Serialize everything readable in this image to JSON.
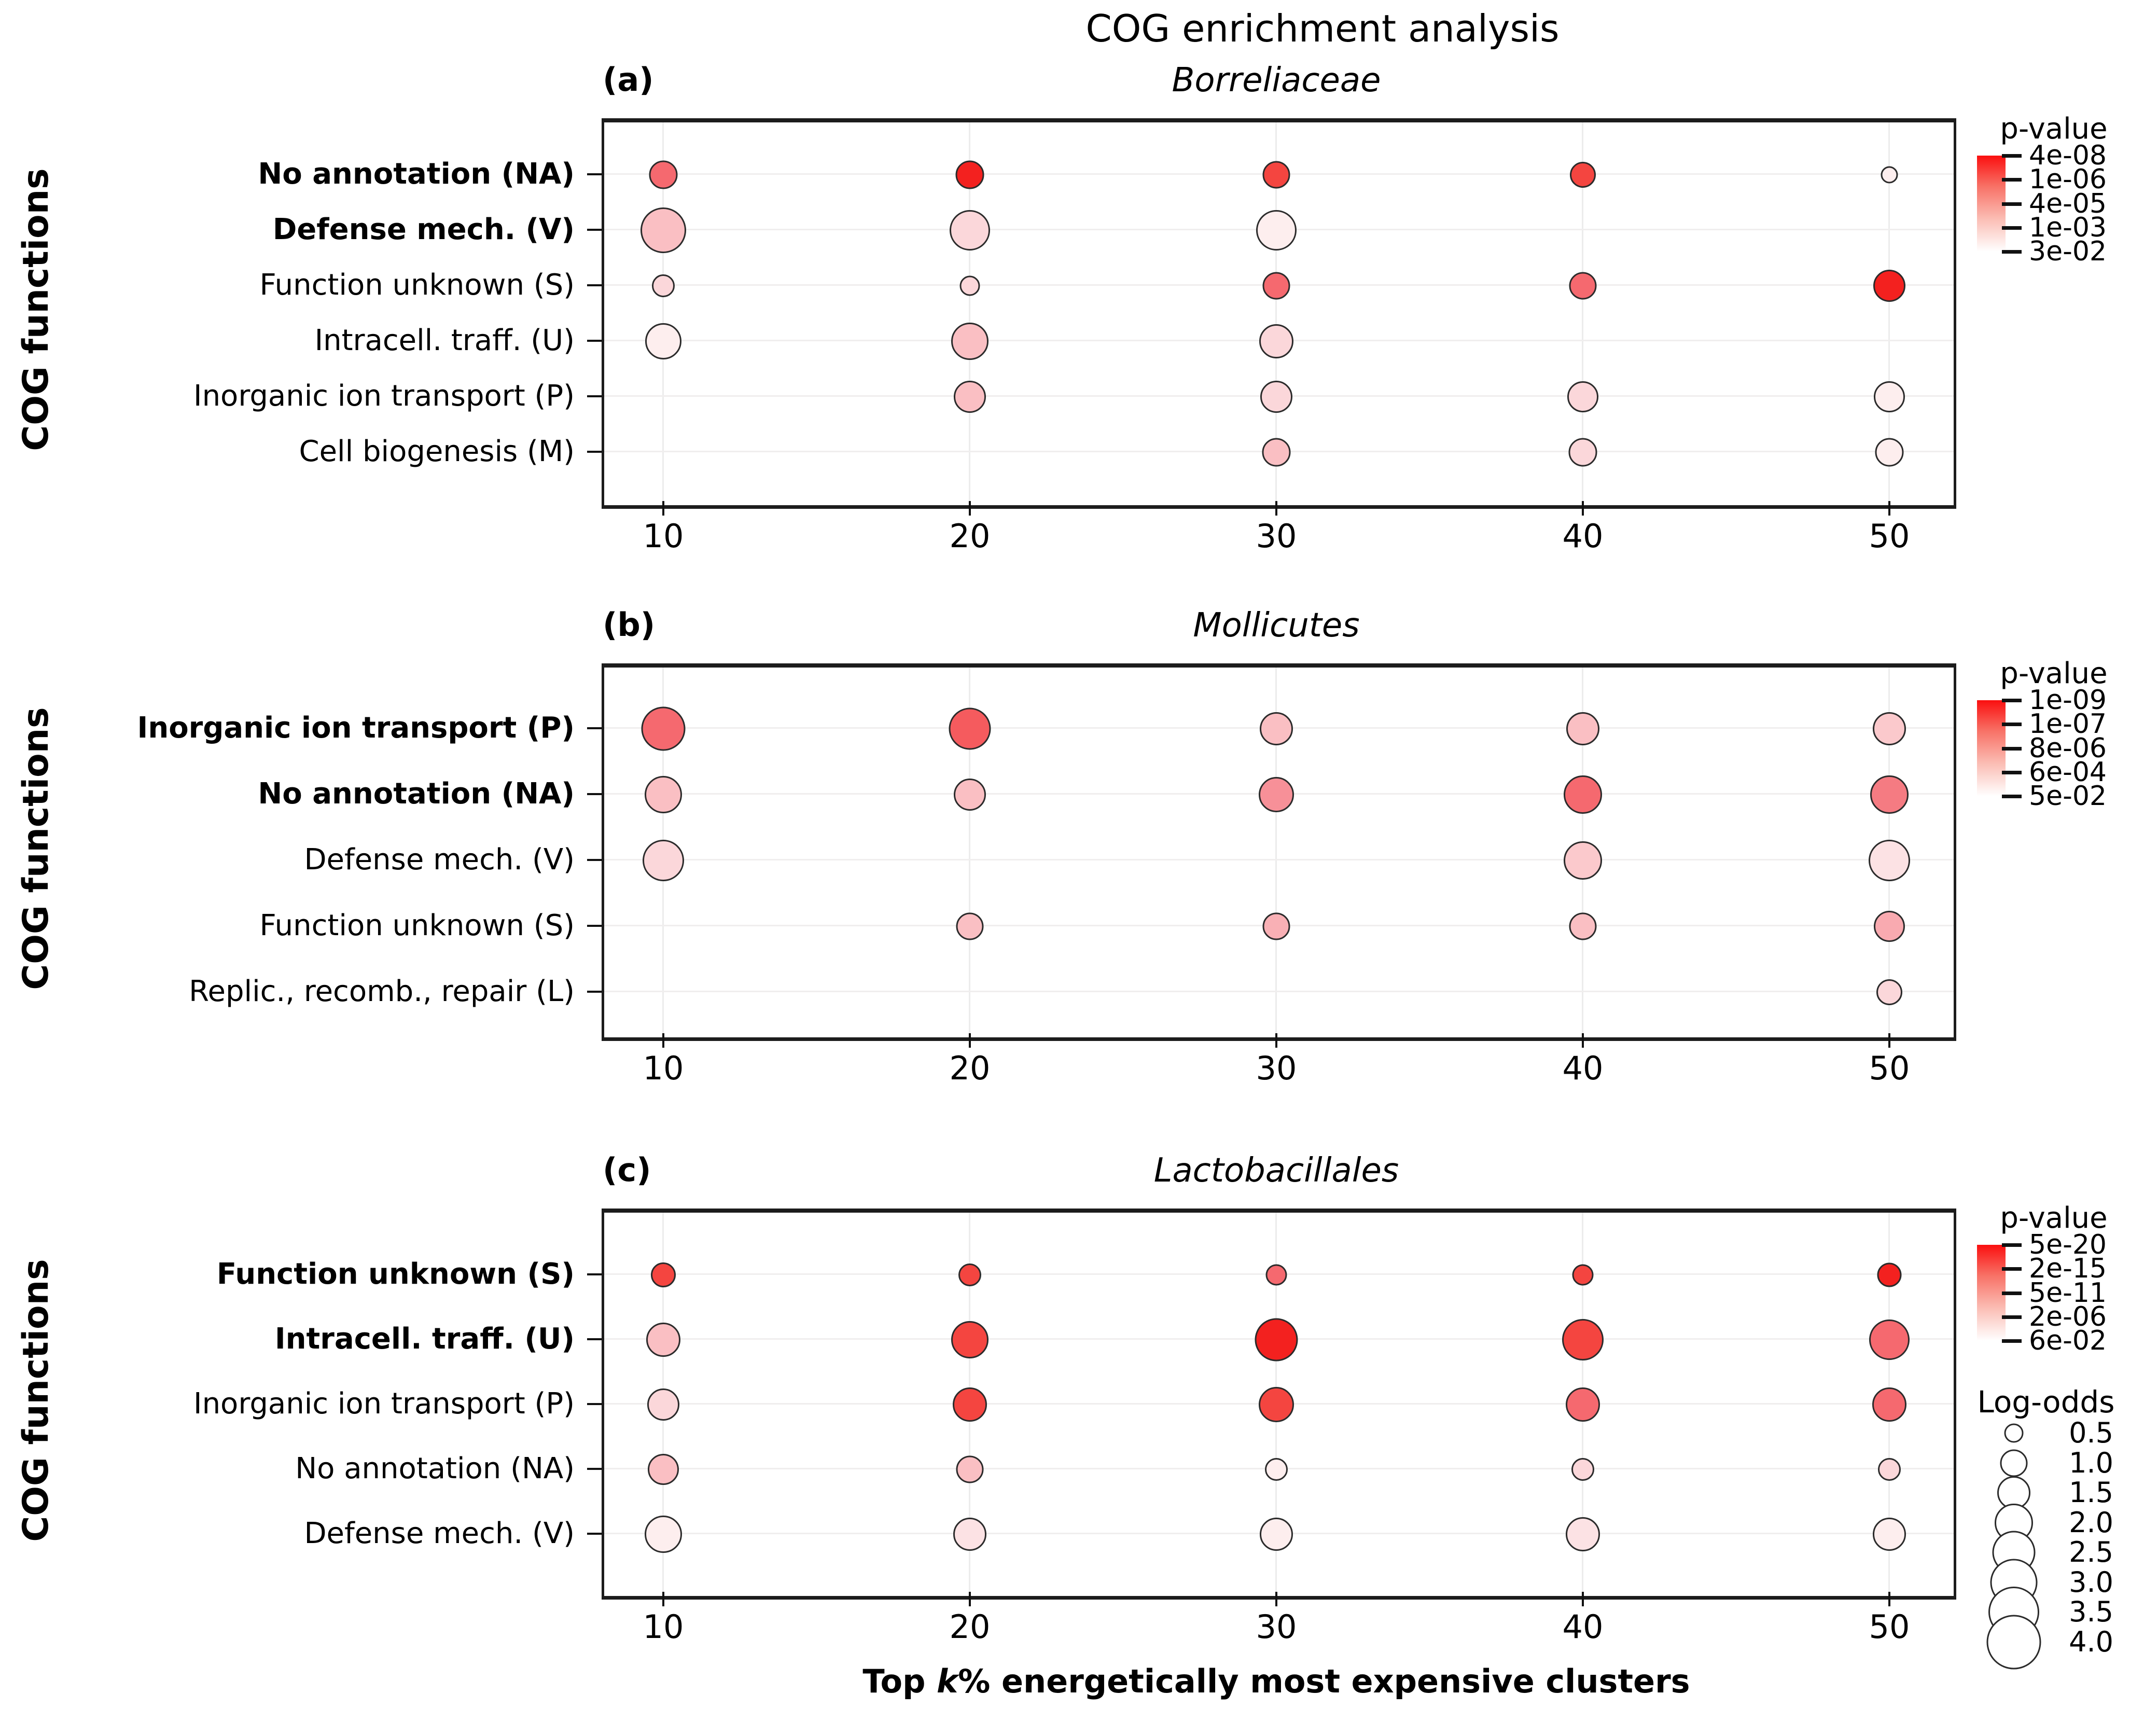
{
  "chart_data": {
    "type": "scatter",
    "title": "COG enrichment analysis",
    "xlabel": {
      "pre": "Top ",
      "k": "k",
      "post": "% energetically most expensive clusters"
    },
    "ylabel": "COG functions",
    "x_ticks": [
      10,
      20,
      30,
      40,
      50
    ],
    "pvalue_legend_title": "p-value",
    "size_legend": {
      "title": "Log-odds",
      "values": [
        0.5,
        1.0,
        1.5,
        2.0,
        2.5,
        3.0,
        3.5,
        4.0
      ]
    },
    "panels": [
      {
        "letter": "(a)",
        "subtitle": "Borreliaceae",
        "pvalue_ticks": [
          "4e-08",
          "1e-06",
          "4e-05",
          "1e-03",
          "3e-02"
        ],
        "rows": [
          {
            "label": "No annotation (NA)",
            "bold": true,
            "points": [
              {
                "k": 10,
                "log_odds": 1.1,
                "color": "#f5696f"
              },
              {
                "k": 20,
                "log_odds": 1.1,
                "color": "#f3211f"
              },
              {
                "k": 30,
                "log_odds": 1.0,
                "color": "#f44540"
              },
              {
                "k": 40,
                "log_odds": 0.9,
                "color": "#f44540"
              },
              {
                "k": 50,
                "log_odds": 0.4,
                "color": "#fdeeee"
              }
            ]
          },
          {
            "label": "Defense mech.  (V)",
            "bold": true,
            "points": [
              {
                "k": 10,
                "log_odds": 2.8,
                "color": "#fabfc3"
              },
              {
                "k": 20,
                "log_odds": 2.2,
                "color": "#fbd7da"
              },
              {
                "k": 30,
                "log_odds": 2.2,
                "color": "#fdeeee"
              }
            ]
          },
          {
            "label": "Function unknown (S)",
            "bold": false,
            "points": [
              {
                "k": 10,
                "log_odds": 0.7,
                "color": "#fbd7da"
              },
              {
                "k": 20,
                "log_odds": 0.55,
                "color": "#fbd7da"
              },
              {
                "k": 30,
                "log_odds": 1.0,
                "color": "#f5696f"
              },
              {
                "k": 40,
                "log_odds": 1.0,
                "color": "#f5696f"
              },
              {
                "k": 50,
                "log_odds": 1.4,
                "color": "#f3211f"
              }
            ]
          },
          {
            "label": "Intracell. traff. (U)",
            "bold": false,
            "points": [
              {
                "k": 10,
                "log_odds": 1.8,
                "color": "#fdeeee"
              },
              {
                "k": 20,
                "log_odds": 1.9,
                "color": "#fabfc3"
              },
              {
                "k": 30,
                "log_odds": 1.6,
                "color": "#fbd7da"
              }
            ]
          },
          {
            "label": "Inorganic ion transport (P)",
            "bold": false,
            "points": [
              {
                "k": 20,
                "log_odds": 1.4,
                "color": "#fabfc3"
              },
              {
                "k": 30,
                "log_odds": 1.4,
                "color": "#fbd7da"
              },
              {
                "k": 40,
                "log_odds": 1.3,
                "color": "#fbd7da"
              },
              {
                "k": 50,
                "log_odds": 1.3,
                "color": "#fdeeee"
              }
            ]
          },
          {
            "label": "Cell biogenesis (M)",
            "bold": false,
            "points": [
              {
                "k": 30,
                "log_odds": 1.1,
                "color": "#fabfc3"
              },
              {
                "k": 40,
                "log_odds": 1.1,
                "color": "#fbd7da"
              },
              {
                "k": 50,
                "log_odds": 1.1,
                "color": "#fdeeee"
              }
            ]
          }
        ]
      },
      {
        "letter": "(b)",
        "subtitle": "Mollicutes",
        "pvalue_ticks": [
          "1e-09",
          "1e-07",
          "8e-06",
          "6e-04",
          "5e-02"
        ],
        "rows": [
          {
            "label": "Inorganic ion transport (P)",
            "bold": true,
            "points": [
              {
                "k": 10,
                "log_odds": 2.6,
                "color": "#f5696f"
              },
              {
                "k": 20,
                "log_odds": 2.4,
                "color": "#f55b5e"
              },
              {
                "k": 30,
                "log_odds": 1.5,
                "color": "#fabfc3"
              },
              {
                "k": 40,
                "log_odds": 1.5,
                "color": "#fabfc3"
              },
              {
                "k": 50,
                "log_odds": 1.5,
                "color": "#fbc9cc"
              }
            ]
          },
          {
            "label": "No annotation (NA)",
            "bold": true,
            "points": [
              {
                "k": 10,
                "log_odds": 1.9,
                "color": "#fabfc3"
              },
              {
                "k": 20,
                "log_odds": 1.4,
                "color": "#fabfc3"
              },
              {
                "k": 30,
                "log_odds": 1.7,
                "color": "#f79098"
              },
              {
                "k": 40,
                "log_odds": 2.0,
                "color": "#f5696f"
              },
              {
                "k": 50,
                "log_odds": 2.0,
                "color": "#f57b82"
              }
            ]
          },
          {
            "label": "Defense mech. (V)",
            "bold": false,
            "points": [
              {
                "k": 10,
                "log_odds": 2.3,
                "color": "#fbd7da"
              },
              {
                "k": 40,
                "log_odds": 2.0,
                "color": "#fbc9cc"
              },
              {
                "k": 50,
                "log_odds": 2.3,
                "color": "#fce2e4"
              }
            ]
          },
          {
            "label": "Function unknown (S)",
            "bold": false,
            "points": [
              {
                "k": 20,
                "log_odds": 1.0,
                "color": "#fabfc3"
              },
              {
                "k": 30,
                "log_odds": 1.0,
                "color": "#f9b0b5"
              },
              {
                "k": 40,
                "log_odds": 1.0,
                "color": "#fabfc3"
              },
              {
                "k": 50,
                "log_odds": 1.3,
                "color": "#f9aab0"
              }
            ]
          },
          {
            "label": "Replic., recomb., repair (L)",
            "bold": false,
            "points": [
              {
                "k": 50,
                "log_odds": 0.9,
                "color": "#fbd7da"
              }
            ]
          }
        ]
      },
      {
        "letter": "(c)",
        "subtitle": "Lactobacillales",
        "pvalue_ticks": [
          "5e-20",
          "2e-15",
          "5e-11",
          "2e-06",
          "6e-02"
        ],
        "rows": [
          {
            "label": "Function unknown (S)",
            "bold": true,
            "points": [
              {
                "k": 10,
                "log_odds": 0.85,
                "color": "#f44540"
              },
              {
                "k": 20,
                "log_odds": 0.7,
                "color": "#f44540"
              },
              {
                "k": 30,
                "log_odds": 0.6,
                "color": "#f5696f"
              },
              {
                "k": 40,
                "log_odds": 0.6,
                "color": "#f44540"
              },
              {
                "k": 50,
                "log_odds": 0.8,
                "color": "#f3211f"
              }
            ]
          },
          {
            "label": "Intracell.  traff.  (U)",
            "bold": true,
            "points": [
              {
                "k": 10,
                "log_odds": 1.6,
                "color": "#fabfc3"
              },
              {
                "k": 20,
                "log_odds": 1.9,
                "color": "#f44540"
              },
              {
                "k": 30,
                "log_odds": 2.5,
                "color": "#f3211f"
              },
              {
                "k": 40,
                "log_odds": 2.3,
                "color": "#f44540"
              },
              {
                "k": 50,
                "log_odds": 2.2,
                "color": "#f5696f"
              }
            ]
          },
          {
            "label": "Inorganic ion transport (P)",
            "bold": false,
            "points": [
              {
                "k": 10,
                "log_odds": 1.4,
                "color": "#fbd7da"
              },
              {
                "k": 20,
                "log_odds": 1.6,
                "color": "#f44540"
              },
              {
                "k": 30,
                "log_odds": 1.7,
                "color": "#f44540"
              },
              {
                "k": 40,
                "log_odds": 1.6,
                "color": "#f5696f"
              },
              {
                "k": 50,
                "log_odds": 1.6,
                "color": "#f5696f"
              }
            ]
          },
          {
            "label": "No annotation (NA)",
            "bold": false,
            "points": [
              {
                "k": 10,
                "log_odds": 1.3,
                "color": "#fabfc3"
              },
              {
                "k": 20,
                "log_odds": 1.0,
                "color": "#fabfc3"
              },
              {
                "k": 30,
                "log_odds": 0.7,
                "color": "#fdeeee"
              },
              {
                "k": 40,
                "log_odds": 0.7,
                "color": "#fbd7da"
              },
              {
                "k": 50,
                "log_odds": 0.7,
                "color": "#fbd7da"
              }
            ]
          },
          {
            "label": "Defense mech. (V)",
            "bold": false,
            "points": [
              {
                "k": 10,
                "log_odds": 1.9,
                "color": "#fdeeee"
              },
              {
                "k": 20,
                "log_odds": 1.5,
                "color": "#fce2e4"
              },
              {
                "k": 30,
                "log_odds": 1.5,
                "color": "#fdeeee"
              },
              {
                "k": 40,
                "log_odds": 1.6,
                "color": "#fce2e4"
              },
              {
                "k": 50,
                "log_odds": 1.5,
                "color": "#fdeeee"
              }
            ]
          }
        ]
      }
    ]
  }
}
